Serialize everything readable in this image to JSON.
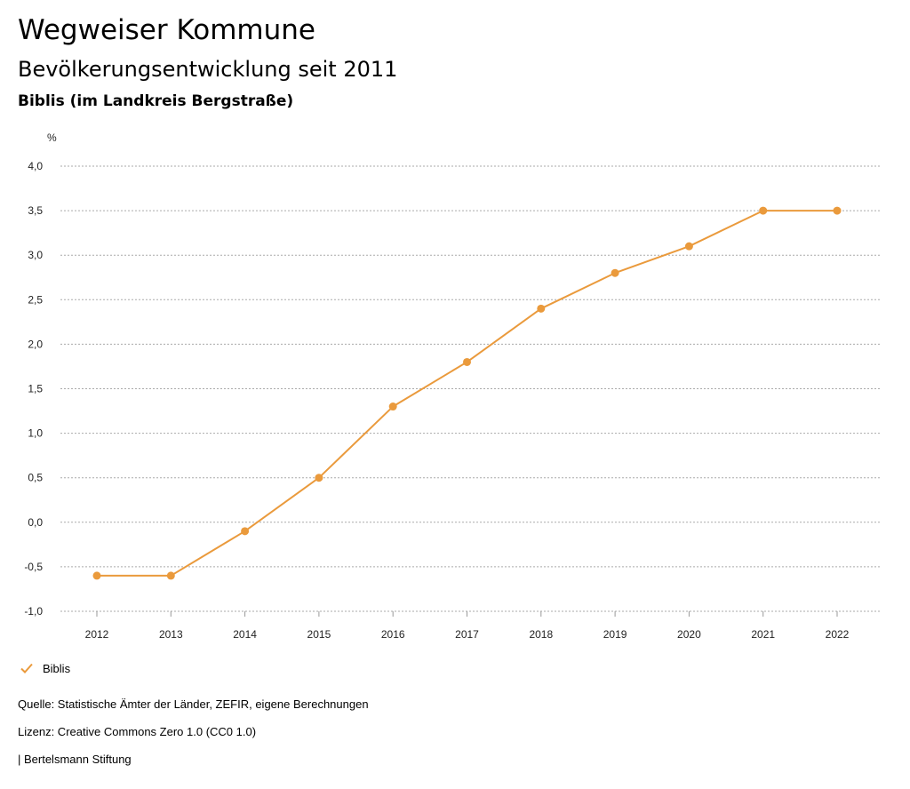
{
  "header": {
    "title": "Wegweiser Kommune",
    "subtitle": "Bevölkerungsentwicklung seit 2011",
    "location": "Biblis (im Landkreis Bergstraße)"
  },
  "chart_data": {
    "type": "line",
    "x": [
      "2012",
      "2013",
      "2014",
      "2015",
      "2016",
      "2017",
      "2018",
      "2019",
      "2020",
      "2021",
      "2022"
    ],
    "series": [
      {
        "name": "Biblis",
        "values": [
          -0.6,
          -0.6,
          -0.1,
          0.5,
          1.3,
          1.8,
          2.4,
          2.8,
          3.1,
          3.5,
          3.5
        ],
        "color": "#ea9a3c"
      }
    ],
    "ylabel": "%",
    "ylim": [
      -1.0,
      4.0
    ],
    "yticks": [
      -1.0,
      -0.5,
      0.0,
      0.5,
      1.0,
      1.5,
      2.0,
      2.5,
      3.0,
      3.5,
      4.0
    ],
    "ytick_labels": [
      "-1,0",
      "-0,5",
      "0,0",
      "0,5",
      "1,0",
      "1,5",
      "2,0",
      "2,5",
      "3,0",
      "3,5",
      "4,0"
    ],
    "grid": true,
    "legend_position": "bottom-left"
  },
  "footer": {
    "source": "Quelle: Statistische Ämter der Länder, ZEFIR, eigene Berechnungen",
    "license": "Lizenz: Creative Commons Zero 1.0 (CC0 1.0)",
    "publisher": "| Bertelsmann Stiftung"
  },
  "icons": {
    "legend": "check-icon"
  }
}
